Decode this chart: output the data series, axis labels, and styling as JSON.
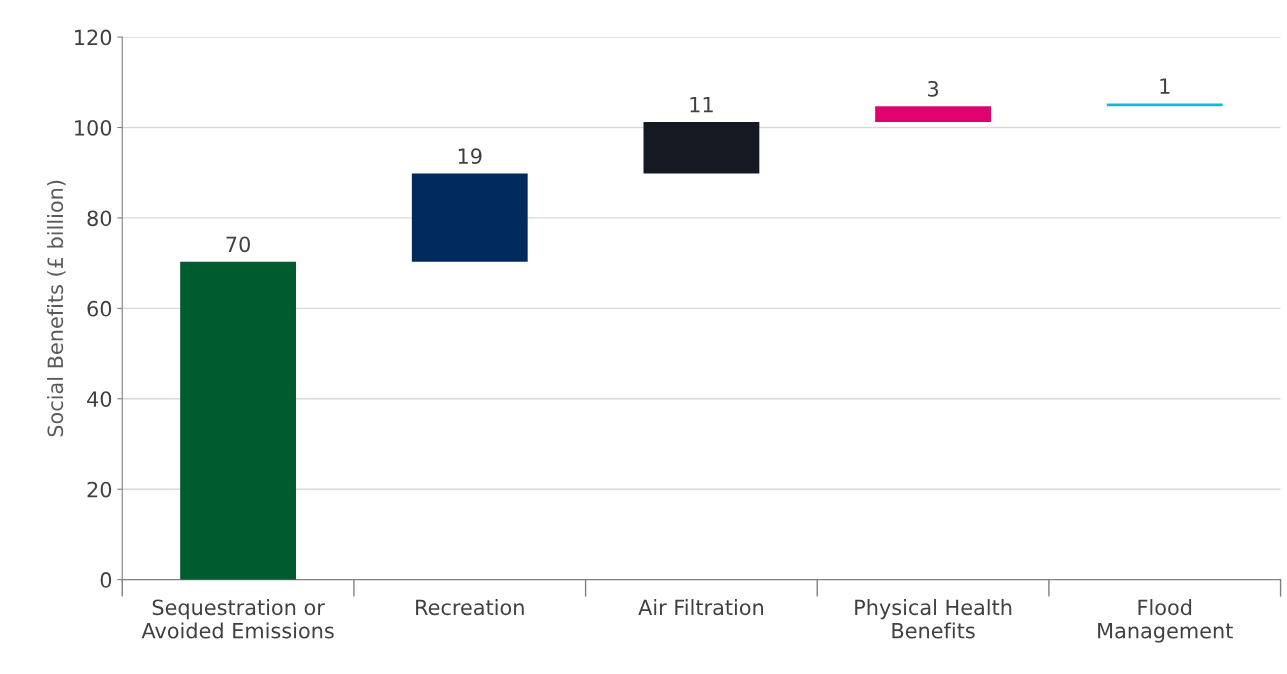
{
  "chart_data": {
    "type": "bar",
    "ylabel": "Social Benefits (£ billion)",
    "categories": [
      "Sequestration or\nAvoided Emissions",
      "Recreation",
      "Air Filtration",
      "Physical Health\nBenefits",
      "Flood\nManagement"
    ],
    "values": [
      70.3,
      19.5,
      11.4,
      3.5,
      0.6
    ],
    "base": [
      0,
      70.3,
      89.8,
      101.2,
      104.7
    ],
    "colors": [
      "#005c2f",
      "#002b5c",
      "#151a22",
      "#e0006e",
      "#1ab6cf"
    ],
    "value_labels": [
      "70",
      "19",
      "11",
      "3",
      "1"
    ],
    "ylim": [
      0,
      120
    ],
    "yticks": [
      0,
      20,
      40,
      60,
      80,
      100,
      120
    ],
    "grid": "y"
  }
}
